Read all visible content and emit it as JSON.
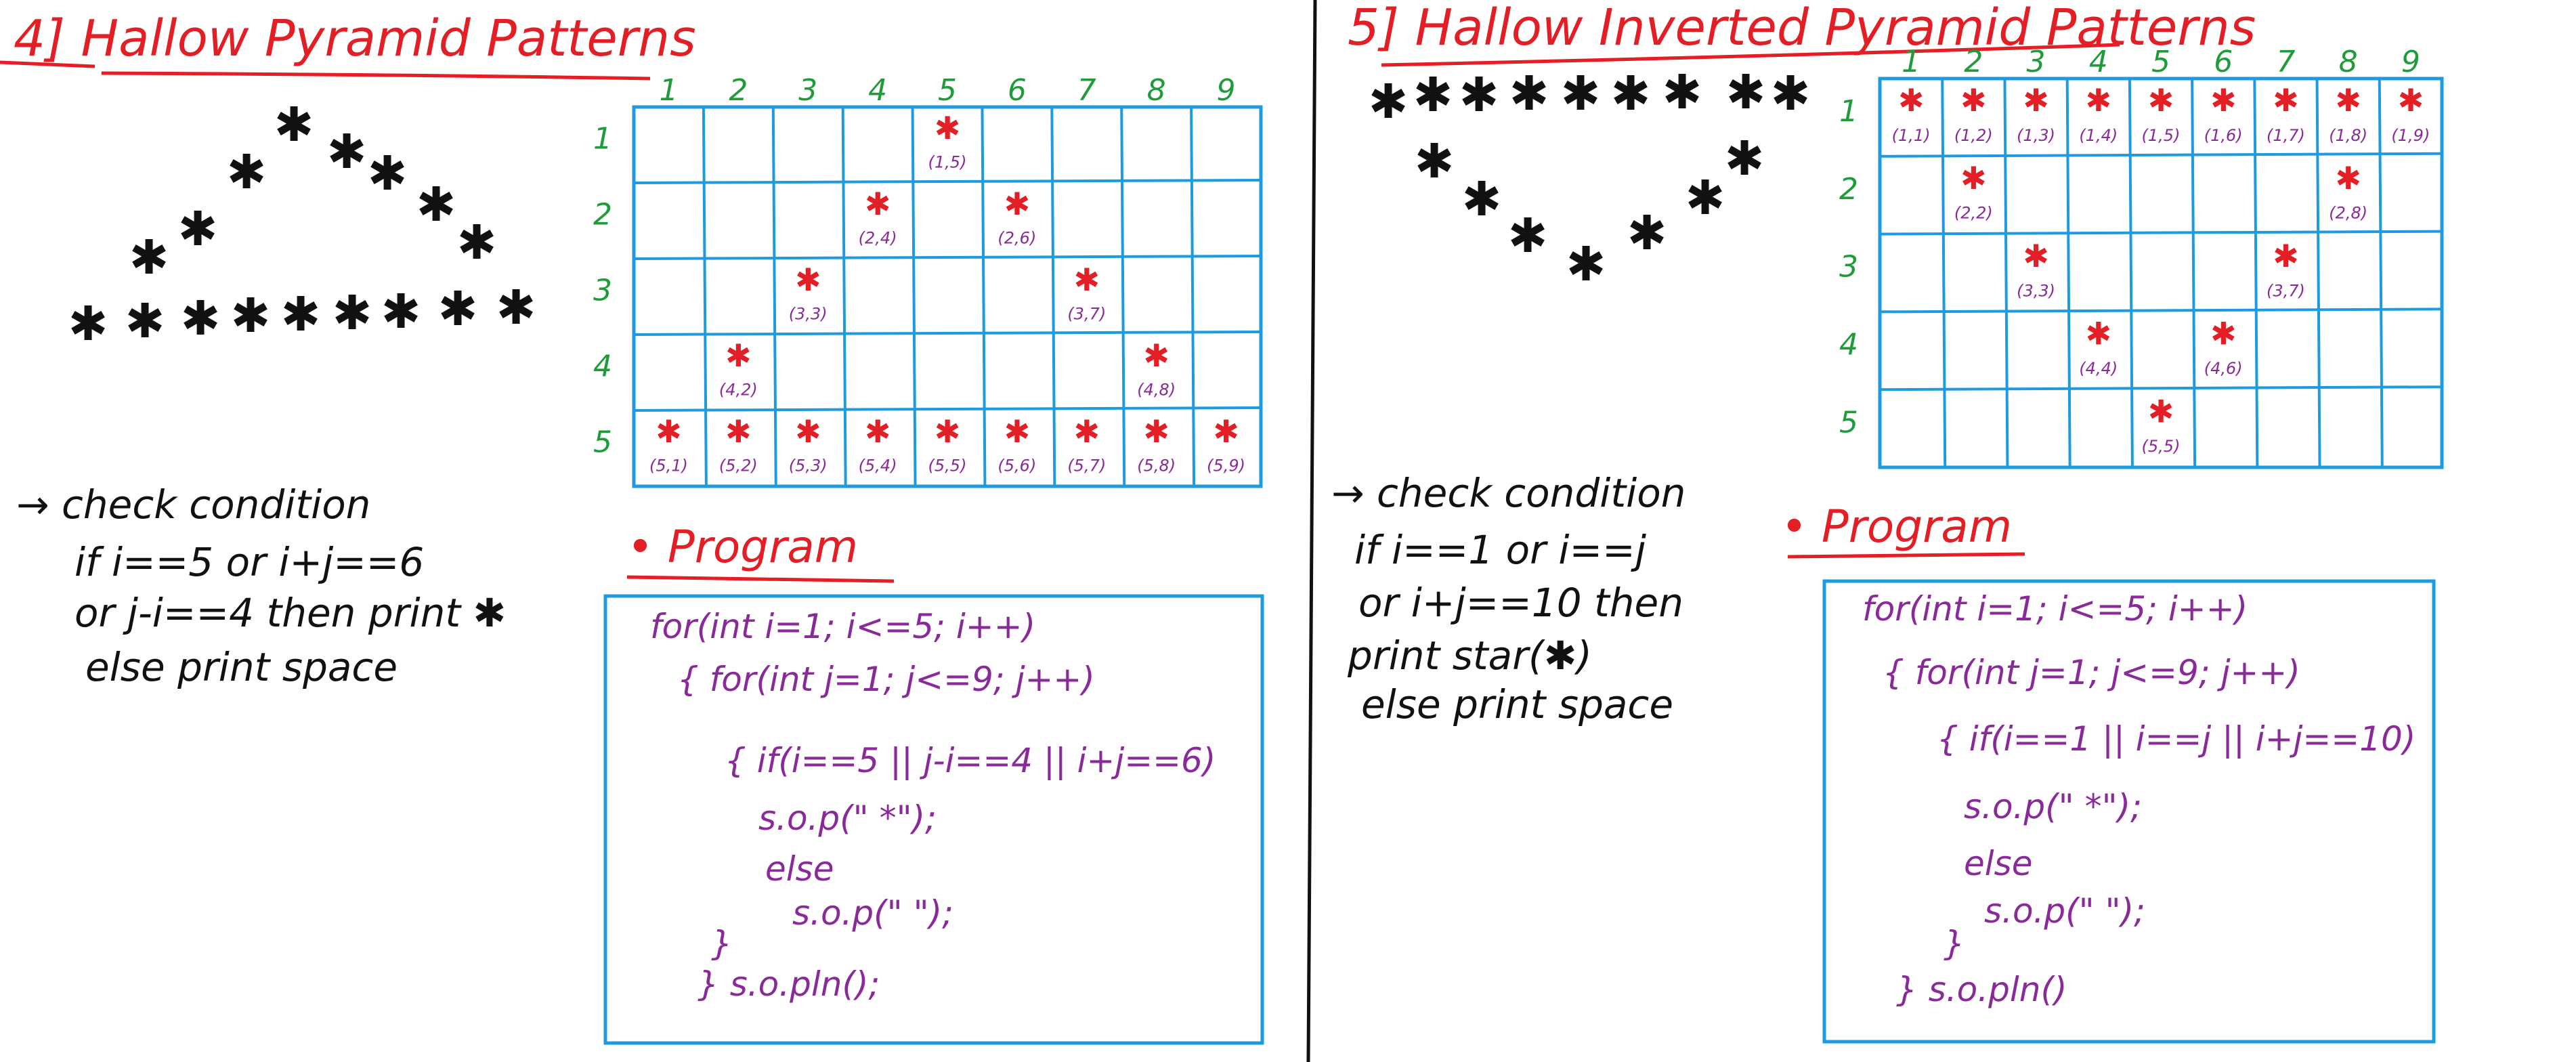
{
  "left": {
    "title": "4] Hallow Pyramid Patterns",
    "col_labels": [
      "1",
      "2",
      "3",
      "4",
      "5",
      "6",
      "7",
      "8",
      "9"
    ],
    "row_labels": [
      "1",
      "2",
      "3",
      "4",
      "5"
    ],
    "cells": [
      {
        "r": 1,
        "c": 5,
        "label": "(1,5)"
      },
      {
        "r": 2,
        "c": 4,
        "label": "(2,4)"
      },
      {
        "r": 2,
        "c": 6,
        "label": "(2,6)"
      },
      {
        "r": 3,
        "c": 3,
        "label": "(3,3)"
      },
      {
        "r": 3,
        "c": 7,
        "label": "(3,7)"
      },
      {
        "r": 4,
        "c": 2,
        "label": "(4,2)"
      },
      {
        "r": 4,
        "c": 8,
        "label": "(4,8)"
      },
      {
        "r": 5,
        "c": 1,
        "label": "(5,1)"
      },
      {
        "r": 5,
        "c": 2,
        "label": "(5,2)"
      },
      {
        "r": 5,
        "c": 3,
        "label": "(5,3)"
      },
      {
        "r": 5,
        "c": 4,
        "label": "(5,4)"
      },
      {
        "r": 5,
        "c": 5,
        "label": "(5,5)"
      },
      {
        "r": 5,
        "c": 6,
        "label": "(5,6)"
      },
      {
        "r": 5,
        "c": 7,
        "label": "(5,7)"
      },
      {
        "r": 5,
        "c": 8,
        "label": "(5,8)"
      },
      {
        "r": 5,
        "c": 9,
        "label": "(5,9)"
      }
    ],
    "condition": [
      "→ check condition",
      "if i==5 or i+j==6",
      "or j-i==4 then print ✱",
      "else print space"
    ],
    "program_label": "• Program",
    "code": [
      "for(int i=1; i<=5; i++)",
      "{ for(int j=1; j<=9; j++)",
      "{ if(i==5 || j-i==4 || i+j==6)",
      "s.o.p(\" *\");",
      "else",
      "s.o.p(\" \");",
      "}",
      "} s.o.pln();"
    ]
  },
  "right": {
    "title": "5] Hallow Inverted Pyramid Patterns",
    "col_labels": [
      "1",
      "2",
      "3",
      "4",
      "5",
      "6",
      "7",
      "8",
      "9"
    ],
    "row_labels": [
      "1",
      "2",
      "3",
      "4",
      "5"
    ],
    "cells": [
      {
        "r": 1,
        "c": 1,
        "label": "(1,1)"
      },
      {
        "r": 1,
        "c": 2,
        "label": "(1,2)"
      },
      {
        "r": 1,
        "c": 3,
        "label": "(1,3)"
      },
      {
        "r": 1,
        "c": 4,
        "label": "(1,4)"
      },
      {
        "r": 1,
        "c": 5,
        "label": "(1,5)"
      },
      {
        "r": 1,
        "c": 6,
        "label": "(1,6)"
      },
      {
        "r": 1,
        "c": 7,
        "label": "(1,7)"
      },
      {
        "r": 1,
        "c": 8,
        "label": "(1,8)"
      },
      {
        "r": 1,
        "c": 9,
        "label": "(1,9)"
      },
      {
        "r": 2,
        "c": 2,
        "label": "(2,2)"
      },
      {
        "r": 2,
        "c": 8,
        "label": "(2,8)"
      },
      {
        "r": 3,
        "c": 3,
        "label": "(3,3)"
      },
      {
        "r": 3,
        "c": 7,
        "label": "(3,7)"
      },
      {
        "r": 4,
        "c": 4,
        "label": "(4,4)"
      },
      {
        "r": 4,
        "c": 6,
        "label": "(4,6)"
      },
      {
        "r": 5,
        "c": 5,
        "label": "(5,5)"
      }
    ],
    "condition": [
      "→ check condition",
      "if i==1 or i==j",
      "or i+j==10 then",
      "print star(✱)",
      "else print space"
    ],
    "program_label": "• Program",
    "code": [
      "for(int i=1; i<=5; i++)",
      "{ for(int j=1; j<=9; j++)",
      "{ if(i==1 || i==j || i+j==10)",
      "s.o.p(\" *\");",
      "else",
      "s.o.p(\" \");",
      "}",
      "} s.o.pln()"
    ]
  },
  "star_glyph": "✱",
  "colors": {
    "ink": "#111111",
    "red": "#e31e24",
    "green": "#1f9b3a",
    "blue": "#1e9be0",
    "purple": "#8a2a9a"
  }
}
